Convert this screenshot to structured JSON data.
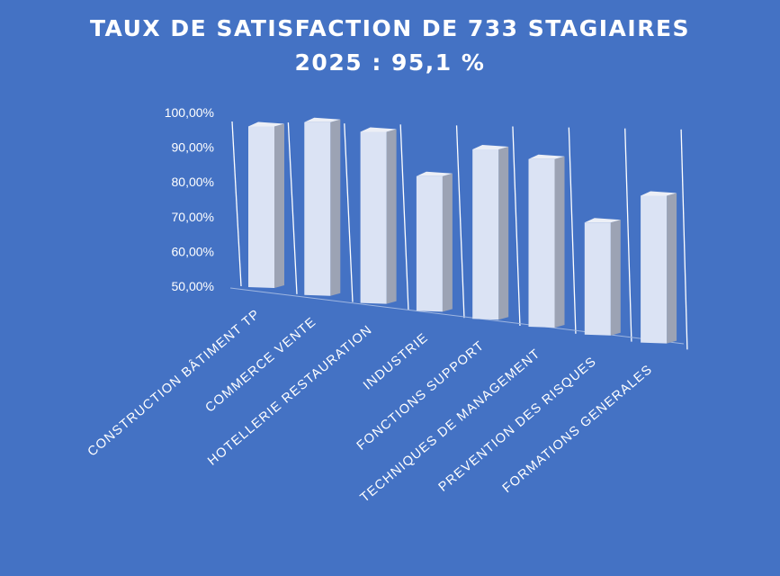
{
  "chart_data": {
    "type": "bar",
    "title": "TAUX DE SATISFACTION DE 733 STAGIAIRES",
    "subtitle": "2025 : 95,1 %",
    "categories": [
      "CONSTRUCTION BÂTIMENT TP",
      "COMMERCE VENTE",
      "HOTELLERIE RESTAURATION",
      "INDUSTRIE",
      "FONCTIONS SUPPORT",
      "TECHNIQUES DE MANAGEMENT",
      "PREVENTION DES RISQUES",
      "FORMATIONS GENERALES"
    ],
    "values": [
      96.0,
      99.5,
      99.0,
      88.5,
      98.5,
      98.0,
      82.0,
      92.0
    ],
    "y_tick_labels": [
      "50,00%",
      "60,00%",
      "70,00%",
      "80,00%",
      "90,00%",
      "100,00%"
    ],
    "ylim": [
      50,
      100
    ],
    "xlabel": "",
    "ylabel": "",
    "legend": false,
    "grid": true,
    "colors": {
      "background": "#4472c4",
      "bar_front": "#dbe3f4",
      "bar_side": "#9ca3b4",
      "bar_top": "#eceff6",
      "grid": "#ffffff",
      "text": "#ffffff"
    }
  }
}
